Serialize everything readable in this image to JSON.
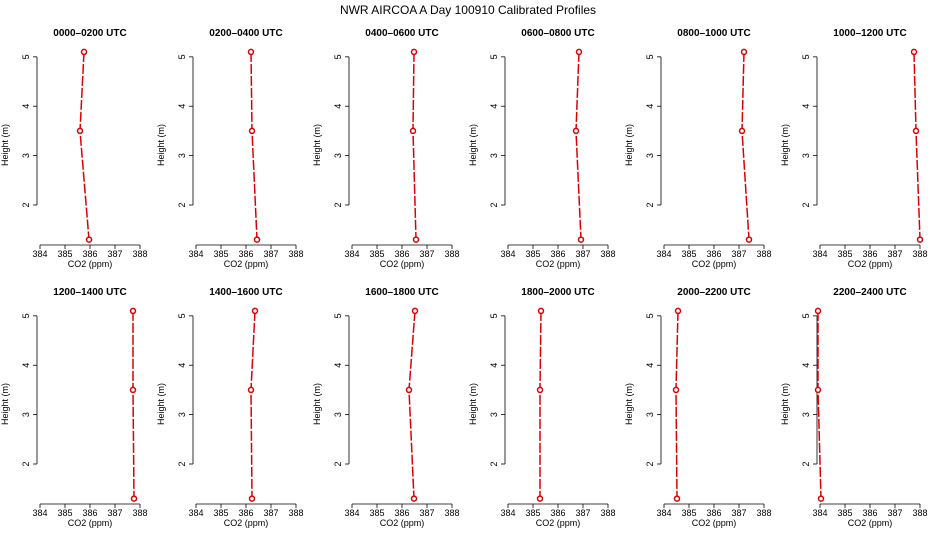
{
  "title": "NWR AIRCOA A  Day 100910  Calibrated Profiles",
  "chart_data": [
    {
      "type": "line",
      "title": "0000–0200 UTC",
      "xlabel": "CO2 (ppm)",
      "ylabel": "Height (m)",
      "x": [
        385.76,
        385.6,
        385.96
      ],
      "values": [
        5.1,
        3.5,
        1.3
      ],
      "color": "#dd0000",
      "xlim": [
        383.88,
        388.12
      ],
      "ylim": [
        1.19,
        5.24
      ],
      "xticks": [
        384,
        385,
        386,
        387,
        388
      ],
      "yticks": [
        2,
        3,
        4,
        5
      ]
    },
    {
      "type": "line",
      "title": "0200–0400 UTC",
      "xlabel": "CO2 (ppm)",
      "ylabel": "Height (m)",
      "x": [
        386.2,
        386.24,
        386.44
      ],
      "values": [
        5.1,
        3.5,
        1.3
      ],
      "color": "#dd0000",
      "xlim": [
        383.88,
        388.12
      ],
      "ylim": [
        1.19,
        5.24
      ],
      "xticks": [
        384,
        385,
        386,
        387,
        388
      ],
      "yticks": [
        2,
        3,
        4,
        5
      ]
    },
    {
      "type": "line",
      "title": "0400–0600 UTC",
      "xlabel": "CO2 (ppm)",
      "ylabel": "Height (m)",
      "x": [
        386.48,
        386.44,
        386.56
      ],
      "values": [
        5.1,
        3.5,
        1.3
      ],
      "color": "#dd0000",
      "xlim": [
        383.88,
        388.12
      ],
      "ylim": [
        1.19,
        5.24
      ],
      "xticks": [
        384,
        385,
        386,
        387,
        388
      ],
      "yticks": [
        2,
        3,
        4,
        5
      ]
    },
    {
      "type": "line",
      "title": "0600–0800 UTC",
      "xlabel": "CO2 (ppm)",
      "ylabel": "Height (m)",
      "x": [
        386.84,
        386.72,
        386.92
      ],
      "values": [
        5.1,
        3.5,
        1.3
      ],
      "color": "#dd0000",
      "xlim": [
        383.88,
        388.12
      ],
      "ylim": [
        1.19,
        5.24
      ],
      "xticks": [
        384,
        385,
        386,
        387,
        388
      ],
      "yticks": [
        2,
        3,
        4,
        5
      ]
    },
    {
      "type": "line",
      "title": "0800–1000 UTC",
      "xlabel": "CO2 (ppm)",
      "ylabel": "Height (m)",
      "x": [
        387.2,
        387.12,
        387.4
      ],
      "values": [
        5.1,
        3.5,
        1.3
      ],
      "color": "#dd0000",
      "xlim": [
        383.88,
        388.12
      ],
      "ylim": [
        1.19,
        5.24
      ],
      "xticks": [
        384,
        385,
        386,
        387,
        388
      ],
      "yticks": [
        2,
        3,
        4,
        5
      ]
    },
    {
      "type": "line",
      "title": "1000–1200 UTC",
      "xlabel": "CO2 (ppm)",
      "ylabel": "Height (m)",
      "x": [
        387.76,
        387.84,
        388.0
      ],
      "values": [
        5.1,
        3.5,
        1.3
      ],
      "color": "#dd0000",
      "xlim": [
        383.88,
        388.12
      ],
      "ylim": [
        1.19,
        5.24
      ],
      "xticks": [
        384,
        385,
        386,
        387,
        388
      ],
      "yticks": [
        2,
        3,
        4,
        5
      ]
    },
    {
      "type": "line",
      "title": "1200–1400 UTC",
      "xlabel": "CO2 (ppm)",
      "ylabel": "Height (m)",
      "x": [
        387.72,
        387.72,
        387.76
      ],
      "values": [
        5.1,
        3.5,
        1.3
      ],
      "color": "#dd0000",
      "xlim": [
        383.88,
        388.12
      ],
      "ylim": [
        1.19,
        5.24
      ],
      "xticks": [
        384,
        385,
        386,
        387,
        388
      ],
      "yticks": [
        2,
        3,
        4,
        5
      ]
    },
    {
      "type": "line",
      "title": "1400–1600 UTC",
      "xlabel": "CO2 (ppm)",
      "ylabel": "Height (m)",
      "x": [
        386.36,
        386.2,
        386.24
      ],
      "values": [
        5.1,
        3.5,
        1.3
      ],
      "color": "#dd0000",
      "xlim": [
        383.88,
        388.12
      ],
      "ylim": [
        1.19,
        5.24
      ],
      "xticks": [
        384,
        385,
        386,
        387,
        388
      ],
      "yticks": [
        2,
        3,
        4,
        5
      ]
    },
    {
      "type": "line",
      "title": "1600–1800 UTC",
      "xlabel": "CO2 (ppm)",
      "ylabel": "Height (m)",
      "x": [
        386.52,
        386.28,
        386.48
      ],
      "values": [
        5.1,
        3.5,
        1.3
      ],
      "color": "#dd0000",
      "xlim": [
        383.88,
        388.12
      ],
      "ylim": [
        1.19,
        5.24
      ],
      "xticks": [
        384,
        385,
        386,
        387,
        388
      ],
      "yticks": [
        2,
        3,
        4,
        5
      ]
    },
    {
      "type": "line",
      "title": "1800–2000 UTC",
      "xlabel": "CO2 (ppm)",
      "ylabel": "Height (m)",
      "x": [
        385.32,
        385.28,
        385.28
      ],
      "values": [
        5.1,
        3.5,
        1.3
      ],
      "color": "#dd0000",
      "xlim": [
        383.88,
        388.12
      ],
      "ylim": [
        1.19,
        5.24
      ],
      "xticks": [
        384,
        385,
        386,
        387,
        388
      ],
      "yticks": [
        2,
        3,
        4,
        5
      ]
    },
    {
      "type": "line",
      "title": "2000–2200 UTC",
      "xlabel": "CO2 (ppm)",
      "ylabel": "Height (m)",
      "x": [
        384.56,
        384.48,
        384.52
      ],
      "values": [
        5.1,
        3.5,
        1.3
      ],
      "color": "#dd0000",
      "xlim": [
        383.88,
        388.12
      ],
      "ylim": [
        1.19,
        5.24
      ],
      "xticks": [
        384,
        385,
        386,
        387,
        388
      ],
      "yticks": [
        2,
        3,
        4,
        5
      ]
    },
    {
      "type": "line",
      "title": "2200–2400 UTC",
      "xlabel": "CO2 (ppm)",
      "ylabel": "Height (m)",
      "x": [
        383.92,
        383.92,
        384.04
      ],
      "values": [
        5.1,
        3.5,
        1.3
      ],
      "color": "#dd0000",
      "xlim": [
        383.88,
        388.12
      ],
      "ylim": [
        1.19,
        5.24
      ],
      "xticks": [
        384,
        385,
        386,
        387,
        388
      ],
      "yticks": [
        2,
        3,
        4,
        5
      ]
    }
  ]
}
